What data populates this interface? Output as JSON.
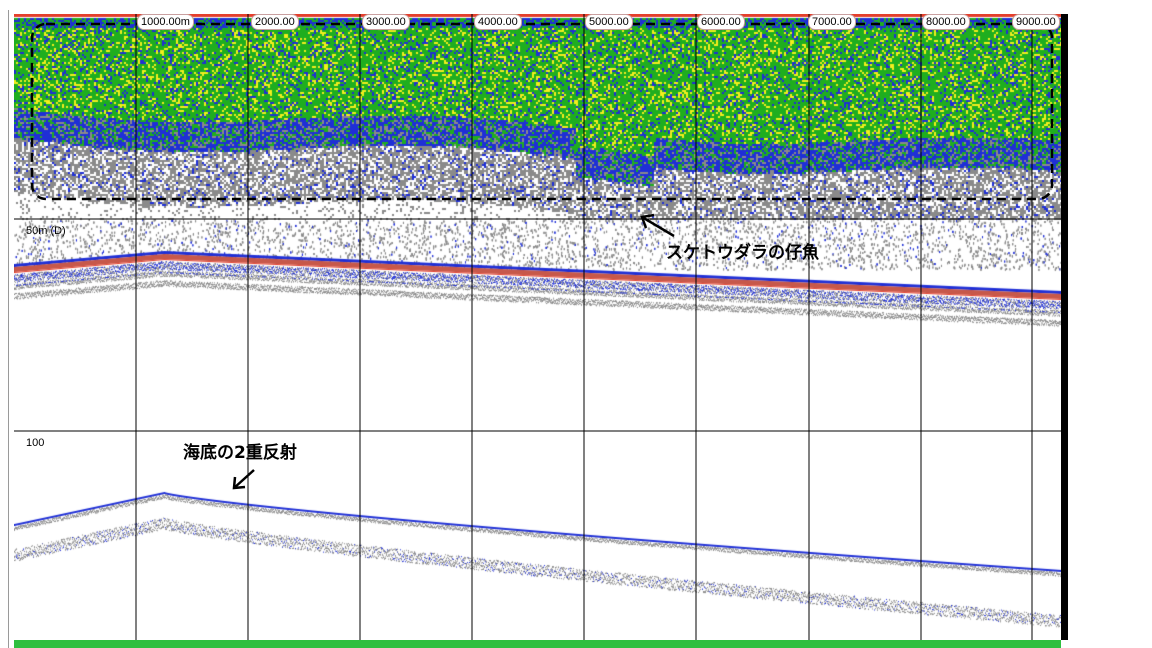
{
  "distance_markers": [
    "1000.00m",
    "2000.00",
    "3000.00",
    "4000.00",
    "5000.00",
    "6000.00",
    "7000.00",
    "8000.00",
    "9000.00"
  ],
  "depth_markers": {
    "d50": "50m (D)",
    "d100": "100"
  },
  "annotations": {
    "pollock": "スケトウダラの仔魚",
    "double_echo": "海底の2重反射"
  },
  "colors": {
    "strong": "#e43f2c",
    "high": "#f2ee1d",
    "mid": "#1fae1f",
    "low": "#1f2fd6",
    "weak": "#8a8a8a",
    "seabed": "#c7584a"
  }
}
